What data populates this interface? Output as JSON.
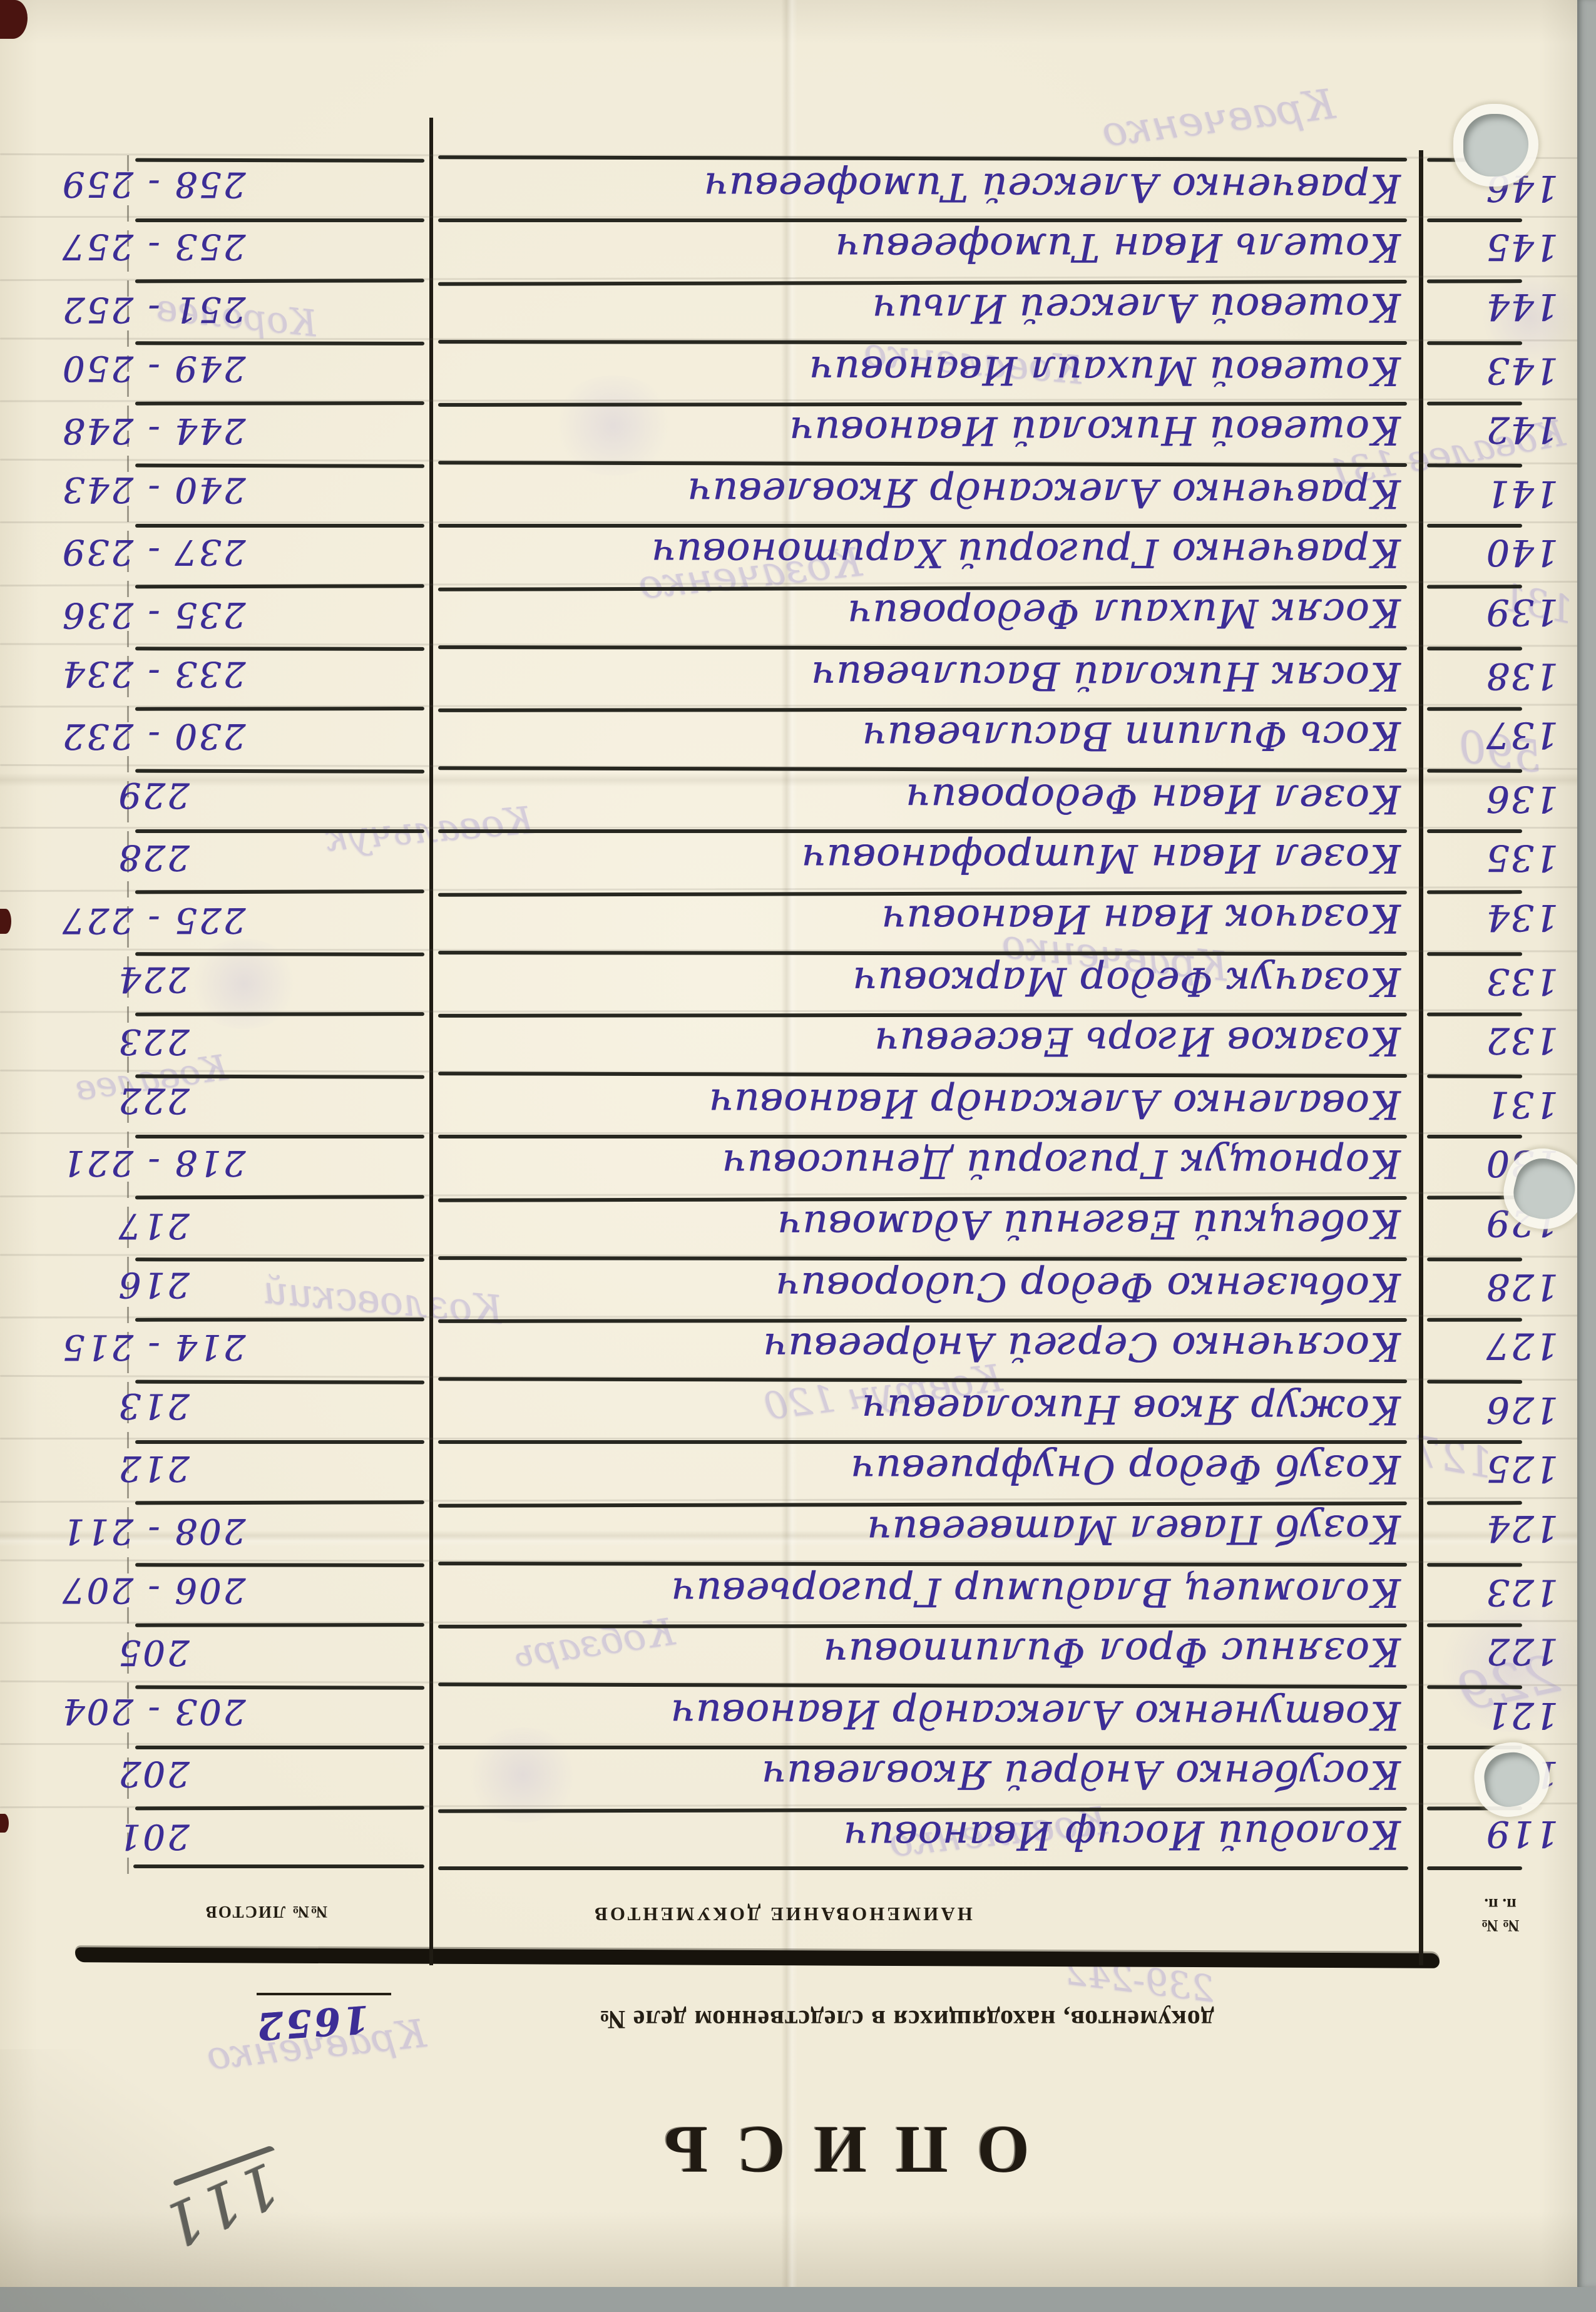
{
  "page": {
    "title": "ОПИСЬ",
    "subtitle": "документов, находящихся в следственном деле №",
    "case_number": "1652",
    "pencil_page_number": "111",
    "col_num_top": "№ №",
    "col_num_bottom": "п. п.",
    "col_name": "НАИМЕНОВАНИЕ ДОКУМЕНТОВ",
    "col_sheets": "№№ ЛИСТОВ",
    "ink_color": "#3c2d96",
    "bleed_color": "#ab9fd4",
    "paper_color": "#f1ebd8"
  },
  "rows": [
    {
      "num": "119",
      "name": "Колодий Иосиф Иванович",
      "sheets": "201"
    },
    {
      "num": "120",
      "name": "Косубенко Андрей Яковлевич",
      "sheets": "202"
    },
    {
      "num": "121",
      "name": "Ковтуненко Александр Иванович",
      "sheets": "203 - 204"
    },
    {
      "num": "122",
      "name": "Козянис Фрол Филиппович",
      "sheets": "205"
    },
    {
      "num": "123",
      "name": "Коломиец Владимир Григорьевич",
      "sheets": "206 - 207"
    },
    {
      "num": "124",
      "name": "Козуб Павел Матвеевич",
      "sheets": "208 - 211"
    },
    {
      "num": "125",
      "name": "Козуб Федор Онуфриевич",
      "sheets": "212"
    },
    {
      "num": "126",
      "name": "Кожур Яков Николаевич",
      "sheets": "213"
    },
    {
      "num": "127",
      "name": "Косяченко Сергей Андреевич",
      "sheets": "214 - 215"
    },
    {
      "num": "128",
      "name": "Кобызенко Федор Сидорович",
      "sheets": "216"
    },
    {
      "num": "129",
      "name": "Кобецкий Евгений Адамович",
      "sheets": "217"
    },
    {
      "num": "130",
      "name": "Корнощук Григорий Денисович",
      "sheets": "218 - 221"
    },
    {
      "num": "131",
      "name": "Коваленко Александр Иванович",
      "sheets": "222"
    },
    {
      "num": "132",
      "name": "Козаков Игорь Евсеевич",
      "sheets": "223"
    },
    {
      "num": "133",
      "name": "Козачук Федор Маркович",
      "sheets": "224"
    },
    {
      "num": "134",
      "name": "Козачок Иван Иванович",
      "sheets": "225 - 227"
    },
    {
      "num": "135",
      "name": "Козел Иван Митрофанович",
      "sheets": "228"
    },
    {
      "num": "136",
      "name": "Козел Иван Федорович",
      "sheets": "229"
    },
    {
      "num": "137",
      "name": "Кось Филипп Васильевич",
      "sheets": "230 - 232"
    },
    {
      "num": "138",
      "name": "Косяк Николай Васильевич",
      "sheets": "233 - 234"
    },
    {
      "num": "139",
      "name": "Косяк Михаил Федорович",
      "sheets": "235 - 236"
    },
    {
      "num": "140",
      "name": "Кравченко Григорий Харитонович",
      "sheets": "237 - 239"
    },
    {
      "num": "141",
      "name": "Кравченко Александр Яковлевич",
      "sheets": "240 - 243"
    },
    {
      "num": "142",
      "name": "Кошевой Николай Иванович",
      "sheets": "244 - 248"
    },
    {
      "num": "143",
      "name": "Кошевой Михаил Иванович",
      "sheets": "249 - 250"
    },
    {
      "num": "144",
      "name": "Кошевой Алексей Ильич",
      "sheets": "251 - 252"
    },
    {
      "num": "145",
      "name": "Кошель Иван Тимофеевич",
      "sheets": "253 - 257"
    },
    {
      "num": "146",
      "name": "Кравченко Алексей Тимофеевич",
      "sheets": "258 - 259"
    }
  ],
  "bleed_fragments": [
    "Кравченко",
    "Коваленко",
    "Ковалев 131",
    "Козаченко",
    "590",
    "Ковальчук",
    "Кравченко",
    "229",
    "Ковтун 120",
    "Козловский",
    "Кобзарь",
    "127",
    "Коваленко",
    "239-242",
    "Кравченко",
    "Королев",
    "Ковалев",
    "131"
  ]
}
